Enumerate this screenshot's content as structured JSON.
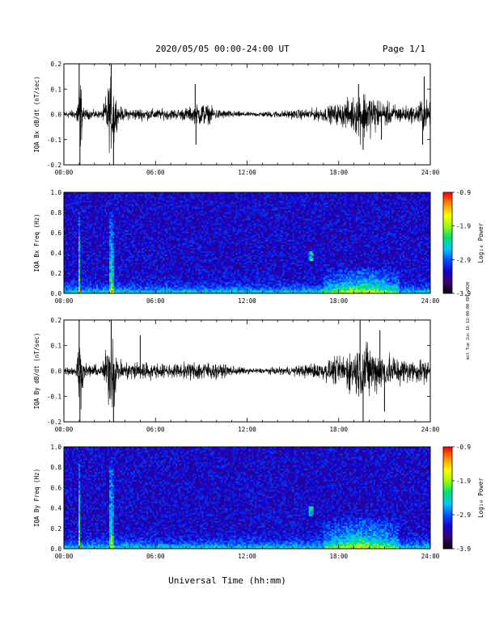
{
  "header": {
    "title": "2020/05/05  00:00-24:00 UT",
    "page": "Page 1/1"
  },
  "footer": {
    "xlabel": "Universal Time (hh:mm)"
  },
  "side_stamp": "mit Tue Jun 16 12:00:00 EDT 2020",
  "colors": {
    "trace": "#000000",
    "background": "#ffffff",
    "colormap": [
      "#000000",
      "#3a0068",
      "#1500d0",
      "#0050ff",
      "#00c8ff",
      "#00e070",
      "#9aff00",
      "#ffff00",
      "#ff9000",
      "#ff0000"
    ]
  },
  "chart_data": [
    {
      "type": "line",
      "name": "panel-bx-dbdt",
      "ylabel": "IQA Bx dB/dt (nT/sec)",
      "xlim": [
        0,
        24
      ],
      "ylim": [
        -0.2,
        0.2
      ],
      "yticks": [
        "-0.2",
        "-0.1",
        "0.0",
        "0.1",
        "0.2"
      ],
      "ytick_values": [
        -0.2,
        -0.1,
        0.0,
        0.1,
        0.2
      ],
      "xticks": [
        "00:00",
        "06:00",
        "12:00",
        "18:00",
        "24:00"
      ],
      "xtick_values": [
        0,
        6,
        12,
        18,
        24
      ],
      "envelope_x": [
        0,
        0.8,
        1.0,
        1.1,
        1.3,
        2.5,
        3.0,
        3.3,
        3.5,
        4.0,
        5.0,
        6.0,
        7.5,
        8.5,
        9.0,
        9.5,
        10.0,
        11.0,
        12.0,
        13.0,
        14.0,
        15.0,
        16.0,
        17.0,
        18.0,
        19.0,
        19.5,
        20.0,
        20.5,
        21.0,
        22.0,
        23.0,
        23.5,
        24.0
      ],
      "envelope_y": [
        0.02,
        0.025,
        0.2,
        0.2,
        0.03,
        0.02,
        0.2,
        0.2,
        0.05,
        0.03,
        0.035,
        0.03,
        0.03,
        0.045,
        0.07,
        0.05,
        0.03,
        0.02,
        0.012,
        0.015,
        0.02,
        0.025,
        0.03,
        0.04,
        0.06,
        0.1,
        0.15,
        0.12,
        0.1,
        0.07,
        0.05,
        0.045,
        0.1,
        0.06
      ],
      "spikes": [
        {
          "x": 1.0,
          "y": 0.2
        },
        {
          "x": 1.05,
          "y": -0.2
        },
        {
          "x": 3.1,
          "y": 0.2
        },
        {
          "x": 3.25,
          "y": -0.2
        },
        {
          "x": 8.6,
          "y": 0.12
        },
        {
          "x": 8.65,
          "y": -0.12
        },
        {
          "x": 19.3,
          "y": 0.12
        },
        {
          "x": 19.6,
          "y": -0.14
        },
        {
          "x": 20.8,
          "y": -0.1
        },
        {
          "x": 23.6,
          "y": 0.15
        },
        {
          "x": 23.5,
          "y": -0.12
        }
      ]
    },
    {
      "type": "heatmap",
      "name": "panel-bx-spectrogram",
      "ylabel": "IQA Bx Freq (Hz)",
      "xlim": [
        0,
        24
      ],
      "ylim": [
        0,
        1.0
      ],
      "yticks": [
        "0.0",
        "0.2",
        "0.4",
        "0.6",
        "0.8",
        "1.0"
      ],
      "ytick_values": [
        0.0,
        0.2,
        0.4,
        0.6,
        0.8,
        1.0
      ],
      "xticks": [
        "00:00",
        "06:00",
        "12:00",
        "18:00",
        "24:00"
      ],
      "xtick_values": [
        0,
        6,
        12,
        18,
        24
      ],
      "colorbar": {
        "label": "Log₁₀ Power",
        "range": [
          -3.9,
          -0.9
        ],
        "ticks": [
          "-0.9",
          "-1.9",
          "-2.9",
          "-3.9"
        ],
        "tick_values": [
          -0.9,
          -1.9,
          -2.9,
          -3.9
        ]
      },
      "features": [
        {
          "x": 1.0,
          "width": 0.15,
          "fmax": 0.8,
          "level": 0.55
        },
        {
          "x": 3.1,
          "width": 0.3,
          "fmax": 0.8,
          "level": 0.55
        },
        {
          "x": 16.2,
          "width": 0.4,
          "fmin": 0.32,
          "fmax": 0.42,
          "level": 0.4
        },
        {
          "x": 19.5,
          "width": 5.0,
          "fmin": 0.0,
          "fmax": 0.25,
          "level": 0.4
        }
      ]
    },
    {
      "type": "line",
      "name": "panel-by-dbdt",
      "ylabel": "IQA By dB/dt (nT/sec)",
      "xlim": [
        0,
        24
      ],
      "ylim": [
        -0.2,
        0.2
      ],
      "yticks": [
        "-0.2",
        "-0.1",
        "0.0",
        "0.1",
        "0.2"
      ],
      "ytick_values": [
        -0.2,
        -0.1,
        0.0,
        0.1,
        0.2
      ],
      "xticks": [
        "00:00",
        "06:00",
        "12:00",
        "18:00",
        "24:00"
      ],
      "xtick_values": [
        0,
        6,
        12,
        18,
        24
      ],
      "envelope_x": [
        0,
        0.8,
        1.0,
        1.1,
        1.3,
        2.5,
        3.0,
        3.3,
        3.5,
        4.0,
        5.0,
        6.0,
        7.5,
        8.5,
        9.0,
        9.5,
        10.0,
        11.0,
        12.0,
        13.0,
        14.0,
        15.0,
        16.0,
        17.0,
        18.0,
        19.0,
        19.5,
        20.0,
        20.5,
        21.0,
        22.0,
        23.0,
        23.5,
        24.0
      ],
      "envelope_y": [
        0.02,
        0.03,
        0.2,
        0.2,
        0.04,
        0.03,
        0.2,
        0.2,
        0.07,
        0.05,
        0.06,
        0.04,
        0.04,
        0.05,
        0.06,
        0.05,
        0.04,
        0.03,
        0.015,
        0.015,
        0.02,
        0.025,
        0.04,
        0.05,
        0.08,
        0.12,
        0.18,
        0.15,
        0.12,
        0.1,
        0.08,
        0.06,
        0.07,
        0.05
      ],
      "spikes": [
        {
          "x": 1.0,
          "y": 0.2
        },
        {
          "x": 1.05,
          "y": -0.2
        },
        {
          "x": 3.1,
          "y": 0.2
        },
        {
          "x": 3.25,
          "y": -0.2
        },
        {
          "x": 5.0,
          "y": 0.14
        },
        {
          "x": 19.4,
          "y": 0.2
        },
        {
          "x": 19.6,
          "y": -0.2
        },
        {
          "x": 20.7,
          "y": 0.16
        },
        {
          "x": 21.0,
          "y": -0.16
        }
      ]
    },
    {
      "type": "heatmap",
      "name": "panel-by-spectrogram",
      "ylabel": "IQA By Freq (Hz)",
      "xlim": [
        0,
        24
      ],
      "ylim": [
        0,
        1.0
      ],
      "yticks": [
        "0.0",
        "0.2",
        "0.4",
        "0.6",
        "0.8",
        "1.0"
      ],
      "ytick_values": [
        0.0,
        0.2,
        0.4,
        0.6,
        0.8,
        1.0
      ],
      "xticks": [
        "00:00",
        "06:00",
        "12:00",
        "18:00",
        "24:00"
      ],
      "xtick_values": [
        0,
        6,
        12,
        18,
        24
      ],
      "colorbar": {
        "label": "Log₁₀ Power",
        "range": [
          -3.9,
          -0.9
        ],
        "ticks": [
          "-0.9",
          "-1.9",
          "-2.9",
          "-3.9"
        ],
        "tick_values": [
          -0.9,
          -1.9,
          -2.9,
          -3.9
        ]
      },
      "features": [
        {
          "x": 1.0,
          "width": 0.15,
          "fmax": 0.85,
          "level": 0.55
        },
        {
          "x": 3.1,
          "width": 0.3,
          "fmax": 0.9,
          "level": 0.55
        },
        {
          "x": 16.2,
          "width": 0.4,
          "fmin": 0.33,
          "fmax": 0.42,
          "level": 0.4
        },
        {
          "x": 19.5,
          "width": 5.0,
          "fmin": 0.0,
          "fmax": 0.3,
          "level": 0.42
        }
      ]
    }
  ]
}
